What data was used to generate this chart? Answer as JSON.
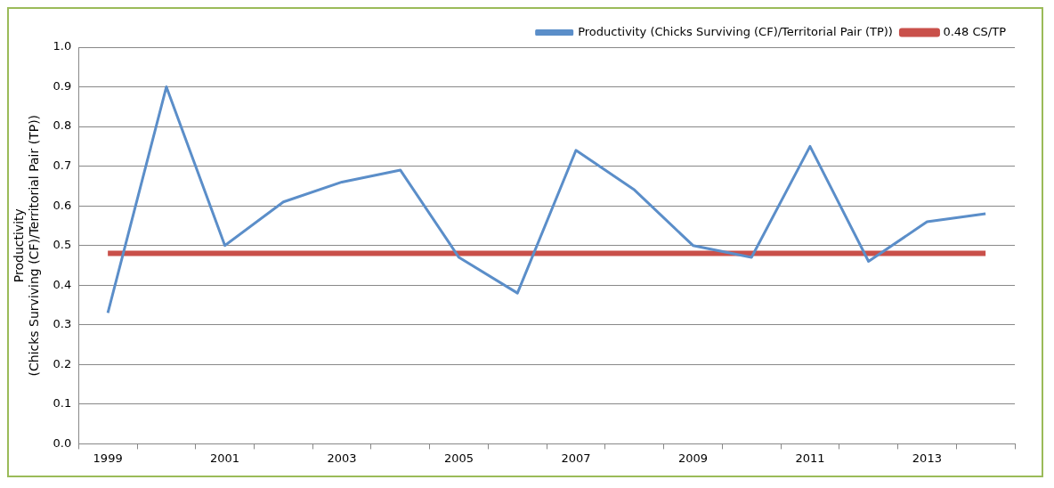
{
  "chart_data": {
    "type": "line",
    "ylabel": "Productivity\n(Chicks Surviving (CF)/Territorial Pair (TP))",
    "categories": [
      "1999",
      null,
      "2001",
      null,
      "2003",
      null,
      "2005",
      null,
      "2007",
      null,
      "2009",
      null,
      "2011",
      null,
      "2013",
      null
    ],
    "series": [
      {
        "name": "Productivity (Chicks Surviving (CF)/Territorial Pair (TP))",
        "color": "#5b8ec9",
        "values": [
          0.33,
          0.9,
          0.5,
          0.61,
          0.66,
          0.69,
          0.47,
          0.38,
          0.74,
          0.64,
          0.5,
          0.47,
          0.75,
          0.46,
          0.56,
          0.58
        ]
      },
      {
        "name": "0.48 CS/TP",
        "color": "#c9504a",
        "values": [
          0.48,
          0.48,
          0.48,
          0.48,
          0.48,
          0.48,
          0.48,
          0.48,
          0.48,
          0.48,
          0.48,
          0.48,
          0.48,
          0.48,
          0.48,
          0.48
        ]
      }
    ],
    "ylim": [
      0,
      1
    ],
    "yticks": [
      {
        "value": 0,
        "label": "0.0"
      },
      {
        "value": 0.1,
        "label": "0.1"
      },
      {
        "value": 0.2,
        "label": "0.2"
      },
      {
        "value": 0.3,
        "label": "0.3"
      },
      {
        "value": 0.4,
        "label": "0.4"
      },
      {
        "value": 0.5,
        "label": "0.5"
      },
      {
        "value": 0.6,
        "label": "0.6"
      },
      {
        "value": 0.7,
        "label": "0.7"
      },
      {
        "value": 0.8,
        "label": "0.8"
      },
      {
        "value": 0.9,
        "label": "0.9"
      },
      {
        "value": 1,
        "label": "1.0"
      }
    ],
    "grid": "y",
    "legend": "top right",
    "marker": "none"
  }
}
